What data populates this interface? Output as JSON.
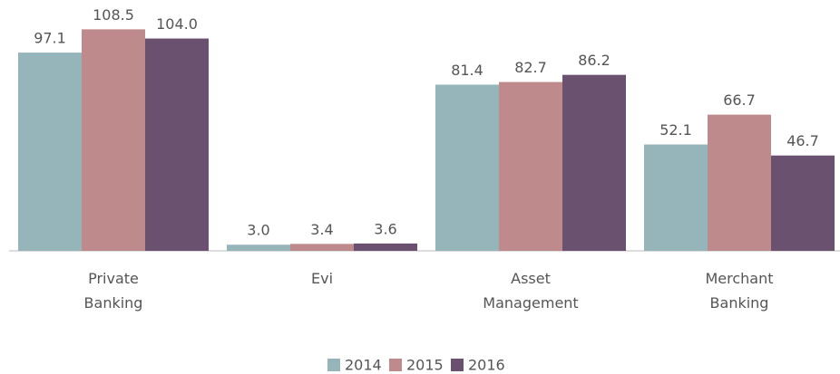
{
  "chart_data": {
    "type": "bar",
    "categories": [
      "Private Banking",
      "Evi",
      "Asset Management",
      "Merchant Banking"
    ],
    "series": [
      {
        "name": "2014",
        "color": "#96b5bb",
        "values": [
          97.1,
          3.0,
          81.4,
          52.1
        ],
        "value_labels": [
          "97.1",
          "3.0",
          "81.4",
          "52.1"
        ]
      },
      {
        "name": "2015",
        "color": "#bf8a8b",
        "values": [
          108.5,
          3.4,
          82.7,
          66.7
        ],
        "value_labels": [
          "108.5",
          "3.4",
          "82.7",
          "66.7"
        ]
      },
      {
        "name": "2016",
        "color": "#6a5170",
        "values": [
          104.0,
          3.6,
          86.2,
          46.7
        ],
        "value_labels": [
          "104.0",
          "3.6",
          "86.2",
          "46.7"
        ]
      }
    ],
    "ylim": [
      0,
      110
    ],
    "legend": "bottom"
  }
}
